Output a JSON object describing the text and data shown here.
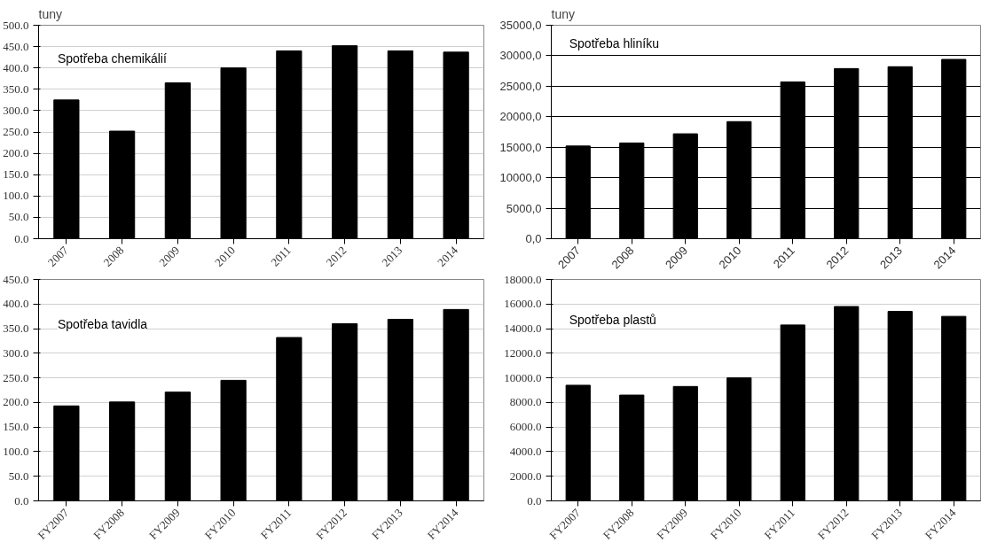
{
  "chart_data": [
    {
      "type": "bar",
      "title": "Spotřeba chemikálií",
      "ylabel": "tuny",
      "categories": [
        "2007",
        "2008",
        "2009",
        "2010",
        "2011",
        "2012",
        "2013",
        "2014"
      ],
      "values": [
        325,
        252,
        365,
        400,
        440,
        452,
        440,
        437
      ],
      "color": "#000000",
      "ylim": [
        0,
        500
      ],
      "yticks": [
        {
          "value": 0,
          "label": "0.0"
        },
        {
          "value": 50,
          "label": "50.0"
        },
        {
          "value": 100,
          "label": "100.0"
        },
        {
          "value": 150,
          "label": "150.0"
        },
        {
          "value": 200,
          "label": "200.0"
        },
        {
          "value": 250,
          "label": "250.0"
        },
        {
          "value": 300,
          "label": "300.0"
        },
        {
          "value": 350,
          "label": "350.0"
        },
        {
          "value": 400,
          "label": "400.0"
        },
        {
          "value": 450,
          "label": "450.0"
        },
        {
          "value": 500,
          "label": "500.0"
        }
      ],
      "grid": "y"
    },
    {
      "type": "bar",
      "title": "Spotřeba hliníku",
      "ylabel": "tuny",
      "categories": [
        "2007",
        "2008",
        "2009",
        "2010",
        "2011",
        "2012",
        "2013",
        "2014"
      ],
      "values": [
        15200,
        15700,
        17200,
        19200,
        25700,
        27900,
        28200,
        29400
      ],
      "color": "#000000",
      "ylim": [
        0,
        35000
      ],
      "yticks": [
        {
          "value": 0,
          "label": "0,0"
        },
        {
          "value": 5000,
          "label": "5000,0"
        },
        {
          "value": 10000,
          "label": "10000,0"
        },
        {
          "value": 15000,
          "label": "15000,0"
        },
        {
          "value": 20000,
          "label": "20000,0"
        },
        {
          "value": 25000,
          "label": "25000,0"
        },
        {
          "value": 30000,
          "label": "30000,0"
        },
        {
          "value": 35000,
          "label": "35000,0"
        }
      ],
      "grid": "y"
    },
    {
      "type": "bar",
      "title": "Spotřeba tavidla",
      "categories": [
        "FY2007",
        "FY2008",
        "FY2009",
        "FY2010",
        "FY2011",
        "FY2012",
        "FY2013",
        "FY2014"
      ],
      "values": [
        193,
        201,
        221,
        245,
        332,
        360,
        369,
        389
      ],
      "color": "#000000",
      "ylim": [
        0,
        450
      ],
      "yticks": [
        {
          "value": 0,
          "label": "0.0"
        },
        {
          "value": 50,
          "label": "50.0"
        },
        {
          "value": 100,
          "label": "100.0"
        },
        {
          "value": 150,
          "label": "150.0"
        },
        {
          "value": 200,
          "label": "200.0"
        },
        {
          "value": 250,
          "label": "250.0"
        },
        {
          "value": 300,
          "label": "300.0"
        },
        {
          "value": 350,
          "label": "350.0"
        },
        {
          "value": 400,
          "label": "400.0"
        },
        {
          "value": 450,
          "label": "450.0"
        }
      ],
      "grid": "y"
    },
    {
      "type": "bar",
      "title": "Spotřeba plastů",
      "categories": [
        "FY2007",
        "FY2008",
        "FY2009",
        "FY2010",
        "FY2011",
        "FY2012",
        "FY2013",
        "FY2014"
      ],
      "values": [
        9400,
        8600,
        9300,
        10000,
        14300,
        15800,
        15400,
        15000
      ],
      "color": "#000000",
      "ylim": [
        0,
        18000
      ],
      "yticks": [
        {
          "value": 0,
          "label": "0.0"
        },
        {
          "value": 2000,
          "label": "2000.0"
        },
        {
          "value": 4000,
          "label": "4000.0"
        },
        {
          "value": 6000,
          "label": "6000.0"
        },
        {
          "value": 8000,
          "label": "8000.0"
        },
        {
          "value": 10000,
          "label": "10000.0"
        },
        {
          "value": 12000,
          "label": "12000.0"
        },
        {
          "value": 14000,
          "label": "14000.0"
        },
        {
          "value": 16000,
          "label": "16000.0"
        },
        {
          "value": 18000,
          "label": "18000.0"
        }
      ],
      "grid": "y"
    }
  ]
}
